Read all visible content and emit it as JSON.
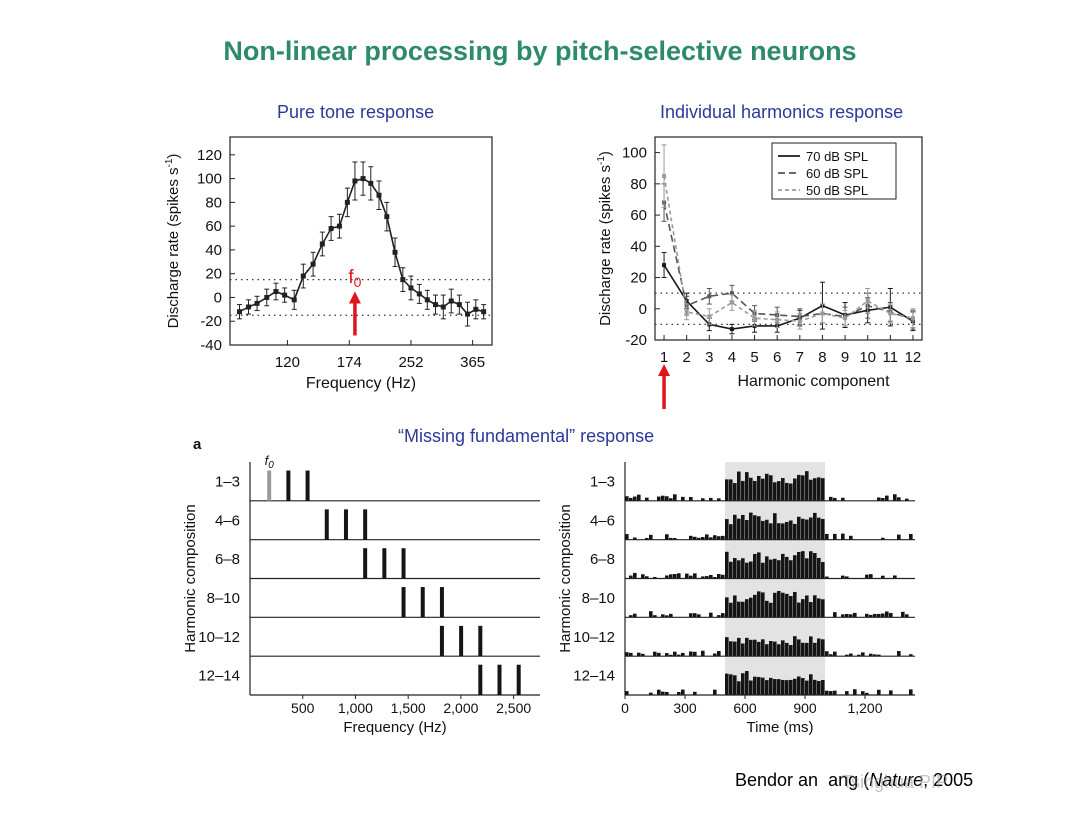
{
  "title": "Non-linear processing by pitch-selective neurons",
  "panel_titles": {
    "pure_tone": "Pure tone response",
    "harmonics": "Individual harmonics response",
    "missing": "“Missing fundamental” response"
  },
  "panel_letter": "a",
  "f0_label": "f",
  "f0_sub": "0",
  "citation": {
    "author": "Bendor an",
    "rest": "ang (",
    "journal": "Nature",
    "year": ", 2005"
  },
  "watermark": "Tsinghua PIP",
  "colors": {
    "title": "#2e8b6a",
    "panel_title": "#2a3a9a",
    "arrow": "#e0141e"
  },
  "chart_data": [
    {
      "type": "line",
      "title": "Pure tone response",
      "xlabel": "Frequency (Hz)",
      "ylabel": "Discharge rate (spikes s",
      "ylabel_sup": "-1",
      "ylabel_close": ")",
      "x_scale": "log",
      "xlim": [
        85,
        410
      ],
      "ylim": [
        -40,
        135
      ],
      "xticks": [
        120,
        174,
        252,
        365
      ],
      "yticks": [
        -40,
        -20,
        0,
        20,
        40,
        60,
        80,
        100,
        120
      ],
      "reference_lines": [
        15,
        -15
      ],
      "marker_x": 180,
      "series": [
        {
          "x": [
            90,
            95,
            100,
            106,
            112,
            118,
            125,
            132,
            140,
            148,
            156,
            164,
            172,
            180,
            189,
            198,
            208,
            218,
            229,
            240,
            252,
            265,
            278,
            292,
            306,
            321,
            337,
            354,
            372,
            390
          ],
          "y": [
            -12,
            -8,
            -5,
            0,
            5,
            2,
            -2,
            18,
            28,
            45,
            58,
            60,
            80,
            98,
            100,
            96,
            86,
            68,
            38,
            15,
            8,
            3,
            -2,
            -6,
            -8,
            -3,
            -6,
            -14,
            -10,
            -12
          ],
          "err": [
            6,
            6,
            6,
            7,
            7,
            6,
            8,
            10,
            10,
            10,
            10,
            10,
            12,
            16,
            14,
            14,
            12,
            12,
            12,
            10,
            10,
            8,
            8,
            8,
            10,
            10,
            8,
            10,
            8,
            6
          ]
        }
      ]
    },
    {
      "type": "line",
      "title": "Individual harmonics response",
      "xlabel": "Harmonic component",
      "ylabel": "Discharge rate (spikes s",
      "ylabel_sup": "-1",
      "ylabel_close": ")",
      "xlim": [
        0.6,
        12.4
      ],
      "ylim": [
        -20,
        110
      ],
      "xticks": [
        1,
        2,
        3,
        4,
        5,
        6,
        7,
        8,
        9,
        10,
        11,
        12
      ],
      "yticks": [
        -20,
        0,
        20,
        40,
        60,
        80,
        100
      ],
      "reference_lines": [
        10,
        -10
      ],
      "marker_x": 1,
      "legend_position": "top-right",
      "series": [
        {
          "name": "70 dB SPL",
          "color": "#1a1a1a",
          "dash": "",
          "x": [
            1,
            2,
            3,
            4,
            5,
            6,
            7,
            8,
            9,
            10,
            11,
            12
          ],
          "y": [
            28,
            5,
            -10,
            -13,
            -11,
            -11,
            -6,
            2,
            -4,
            -1,
            1,
            -8
          ],
          "err": [
            8,
            5,
            4,
            3,
            4,
            4,
            5,
            15,
            8,
            8,
            12,
            6
          ]
        },
        {
          "name": "60 dB SPL",
          "color": "#555555",
          "dash": "7,4",
          "x": [
            1,
            2,
            3,
            4,
            5,
            6,
            7,
            8,
            9,
            10,
            11,
            12
          ],
          "y": [
            68,
            2,
            8,
            10,
            -3,
            -4,
            -5,
            -3,
            -5,
            2,
            -2,
            -7
          ],
          "err": [
            12,
            6,
            5,
            5,
            5,
            5,
            5,
            6,
            6,
            8,
            6,
            6
          ]
        },
        {
          "name": "50 dB SPL",
          "color": "#9a9a9a",
          "dash": "4,3",
          "x": [
            1,
            2,
            3,
            4,
            5,
            6,
            7,
            8,
            9,
            10,
            11,
            12
          ],
          "y": [
            85,
            -2,
            -5,
            4,
            -6,
            -7,
            -8,
            -3,
            -6,
            5,
            -3,
            -6
          ],
          "err": [
            20,
            5,
            5,
            5,
            5,
            5,
            5,
            6,
            5,
            8,
            6,
            6
          ]
        }
      ]
    },
    {
      "type": "bar",
      "xlabel": "Frequency (Hz)",
      "ylabel": "Harmonic composition",
      "xlim": [
        0,
        2750
      ],
      "xticks": [
        500,
        1000,
        1500,
        2000,
        2500
      ],
      "xticklabels": [
        "500",
        "1,000",
        "1,500",
        "2,000",
        "2,500"
      ],
      "rows": [
        {
          "label": "1–3",
          "freqs": [
            182,
            364,
            546
          ],
          "f0": 182
        },
        {
          "label": "4–6",
          "freqs": [
            728,
            910,
            1092
          ]
        },
        {
          "label": "6–8",
          "freqs": [
            1092,
            1274,
            1456
          ]
        },
        {
          "label": "8–10",
          "freqs": [
            1456,
            1638,
            1820
          ]
        },
        {
          "label": "10–12",
          "freqs": [
            1820,
            2002,
            2184
          ]
        },
        {
          "label": "12–14",
          "freqs": [
            2184,
            2366,
            2548
          ]
        }
      ]
    },
    {
      "type": "bar",
      "xlabel": "Time (ms)",
      "ylabel": "Harmonic composition",
      "xlim": [
        0,
        1450
      ],
      "xticks": [
        0,
        300,
        600,
        900,
        1200
      ],
      "xticklabels": [
        "0",
        "300",
        "600",
        "900",
        "1,200"
      ],
      "stimulus_window": [
        500,
        1000
      ],
      "bin_ms": 20,
      "rows": [
        {
          "label": "1–3",
          "background": 0.22,
          "driven": 0.78
        },
        {
          "label": "4–6",
          "background": 0.2,
          "driven": 0.72
        },
        {
          "label": "6–8",
          "background": 0.18,
          "driven": 0.72
        },
        {
          "label": "8–10",
          "background": 0.22,
          "driven": 0.68
        },
        {
          "label": "10–12",
          "background": 0.18,
          "driven": 0.52
        },
        {
          "label": "12–14",
          "background": 0.2,
          "driven": 0.62
        }
      ]
    }
  ]
}
